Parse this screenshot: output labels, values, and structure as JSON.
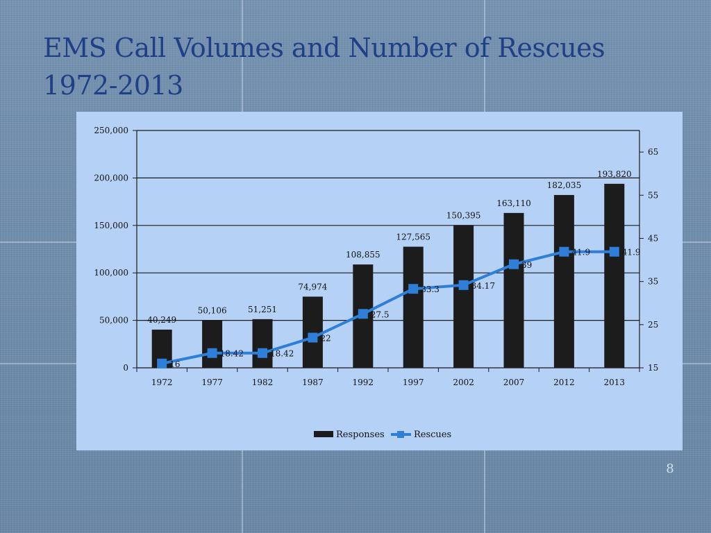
{
  "slide": {
    "title_line1": "EMS Call Volumes and Number of Rescues",
    "title_line2": "1972-2013",
    "page_number": "8"
  },
  "chart_data": {
    "type": "bar",
    "categories": [
      "1972",
      "1977",
      "1982",
      "1987",
      "1992",
      "1997",
      "2002",
      "2007",
      "2012",
      "2013"
    ],
    "series": [
      {
        "name": "Responses",
        "chart_type": "bar",
        "axis": "left",
        "color": "#1c1c1c",
        "values": [
          40249,
          50106,
          51251,
          74974,
          108855,
          127565,
          150395,
          163110,
          182035,
          193820
        ],
        "labels": [
          "40,249",
          "50,106",
          "51,251",
          "74,974",
          "108,855",
          "127,565",
          "150,395",
          "163,110",
          "182,035",
          "193,820"
        ]
      },
      {
        "name": "Rescues",
        "chart_type": "line",
        "axis": "right",
        "color": "#2f7ed8",
        "marker": "square",
        "values": [
          16,
          18.42,
          18.42,
          22,
          27.5,
          33.3,
          34.17,
          39,
          41.9,
          41.9
        ],
        "labels": [
          "16",
          "18.42",
          "18.42",
          "22",
          "27.5",
          "33.3",
          "34.17",
          "39",
          "41.9",
          "41.9"
        ]
      }
    ],
    "y_left": {
      "lim": [
        0,
        250000
      ],
      "ticks": [
        0,
        50000,
        100000,
        150000,
        200000,
        250000
      ],
      "tick_labels": [
        "0",
        "50,000",
        "100,000",
        "150,000",
        "200,000",
        "250,000"
      ],
      "gridlines": true
    },
    "y_right": {
      "lim": [
        15,
        70
      ],
      "ticks": [
        15,
        25,
        35,
        45,
        55,
        65
      ],
      "tick_labels": [
        "15",
        "25",
        "35",
        "45",
        "55",
        "65"
      ]
    },
    "legend": {
      "position": "bottom",
      "entries": [
        "Responses",
        "Rescues"
      ]
    }
  }
}
